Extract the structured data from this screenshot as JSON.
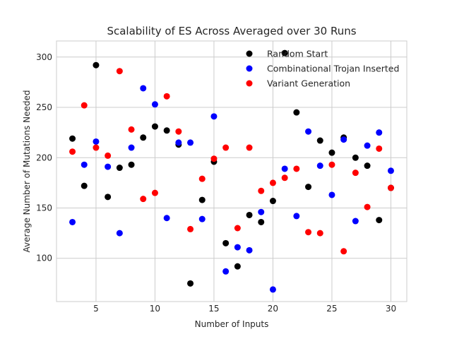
{
  "chart_data": {
    "type": "scatter",
    "title": "Scalability of ES Across Averaged over 30 Runs",
    "xlabel": "Number of Inputs",
    "ylabel": "Average Number of Mutations Needed",
    "xlim": [
      1.65,
      31.35
    ],
    "ylim": [
      57,
      316
    ],
    "xticks": [
      5,
      10,
      15,
      20,
      25,
      30
    ],
    "yticks": [
      100,
      150,
      200,
      250,
      300
    ],
    "grid": true,
    "legend_position": "top-right",
    "series": [
      {
        "name": "Random Start",
        "color": "#000000",
        "points": [
          [
            3,
            219
          ],
          [
            4,
            172
          ],
          [
            5,
            292
          ],
          [
            6,
            161
          ],
          [
            7,
            190
          ],
          [
            8,
            193
          ],
          [
            9,
            220
          ],
          [
            10,
            231
          ],
          [
            11,
            227
          ],
          [
            12,
            213
          ],
          [
            13,
            75
          ],
          [
            14,
            158
          ],
          [
            15,
            196
          ],
          [
            16,
            115
          ],
          [
            17,
            92
          ],
          [
            18,
            143
          ],
          [
            19,
            136
          ],
          [
            20,
            157
          ],
          [
            21,
            304
          ],
          [
            22,
            245
          ],
          [
            23,
            171
          ],
          [
            24,
            217
          ],
          [
            25,
            205
          ],
          [
            26,
            220
          ],
          [
            27,
            200
          ],
          [
            28,
            192
          ],
          [
            29,
            138
          ],
          [
            30,
            170
          ]
        ]
      },
      {
        "name": "Combinational Trojan Inserted",
        "color": "#0000ff",
        "points": [
          [
            3,
            136
          ],
          [
            4,
            193
          ],
          [
            5,
            216
          ],
          [
            6,
            191
          ],
          [
            7,
            125
          ],
          [
            8,
            210
          ],
          [
            9,
            269
          ],
          [
            10,
            253
          ],
          [
            11,
            140
          ],
          [
            12,
            215
          ],
          [
            13,
            215
          ],
          [
            14,
            139
          ],
          [
            15,
            241
          ],
          [
            16,
            87
          ],
          [
            17,
            111
          ],
          [
            18,
            108
          ],
          [
            19,
            146
          ],
          [
            20,
            69
          ],
          [
            21,
            189
          ],
          [
            22,
            142
          ],
          [
            23,
            226
          ],
          [
            24,
            192
          ],
          [
            25,
            163
          ],
          [
            26,
            218
          ],
          [
            27,
            137
          ],
          [
            28,
            212
          ],
          [
            29,
            225
          ],
          [
            30,
            187
          ]
        ]
      },
      {
        "name": "Variant Generation",
        "color": "#ff0000",
        "points": [
          [
            3,
            206
          ],
          [
            4,
            252
          ],
          [
            5,
            210
          ],
          [
            6,
            202
          ],
          [
            7,
            286
          ],
          [
            8,
            228
          ],
          [
            9,
            159
          ],
          [
            10,
            165
          ],
          [
            11,
            261
          ],
          [
            12,
            226
          ],
          [
            13,
            129
          ],
          [
            14,
            179
          ],
          [
            15,
            199
          ],
          [
            16,
            210
          ],
          [
            17,
            130
          ],
          [
            18,
            210
          ],
          [
            19,
            167
          ],
          [
            20,
            175
          ],
          [
            21,
            180
          ],
          [
            22,
            189
          ],
          [
            23,
            126
          ],
          [
            24,
            125
          ],
          [
            25,
            193
          ],
          [
            26,
            107
          ],
          [
            27,
            185
          ],
          [
            28,
            151
          ],
          [
            29,
            209
          ],
          [
            30,
            170
          ]
        ]
      }
    ]
  }
}
